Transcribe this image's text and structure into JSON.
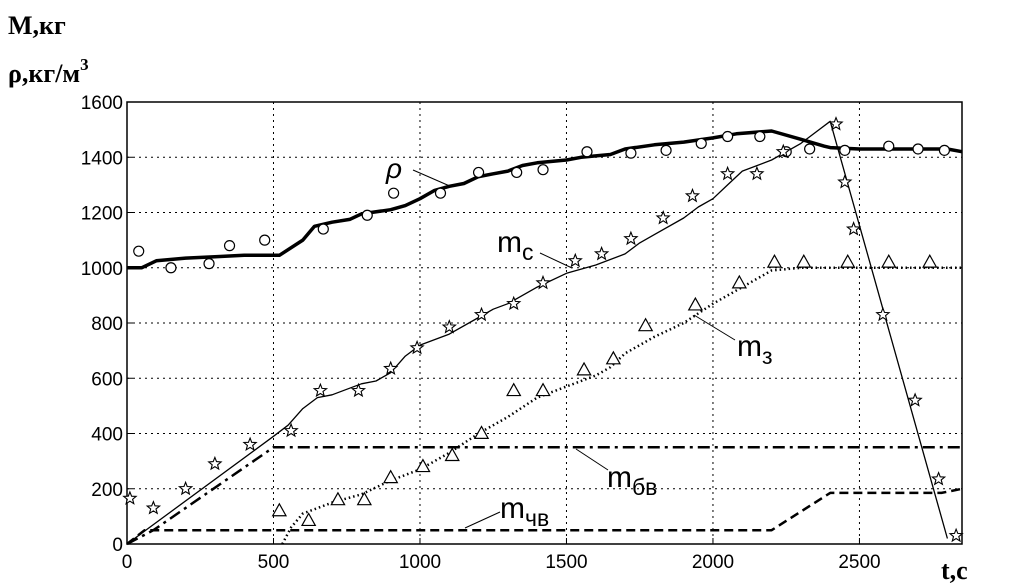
{
  "chart_data": {
    "type": "line",
    "y_label_line1": "M,кг",
    "y_label_line2": "ρ,кг/м",
    "y_label_sup": "3",
    "x_label": "t,c",
    "xlim": [
      0,
      2850
    ],
    "ylim": [
      0,
      1600
    ],
    "x_ticks": [
      0,
      500,
      1000,
      1500,
      2000,
      2500
    ],
    "y_ticks": [
      0,
      200,
      400,
      600,
      800,
      1000,
      1200,
      1400,
      1600
    ],
    "grid": true,
    "series": [
      {
        "name": "ρ",
        "style": "thick-solid",
        "line": [
          [
            0,
            1000
          ],
          [
            50,
            1000
          ],
          [
            100,
            1025
          ],
          [
            200,
            1035
          ],
          [
            300,
            1040
          ],
          [
            400,
            1045
          ],
          [
            520,
            1045
          ],
          [
            600,
            1100
          ],
          [
            640,
            1150
          ],
          [
            700,
            1165
          ],
          [
            760,
            1175
          ],
          [
            800,
            1195
          ],
          [
            900,
            1210
          ],
          [
            950,
            1225
          ],
          [
            1000,
            1250
          ],
          [
            1050,
            1280
          ],
          [
            1100,
            1295
          ],
          [
            1150,
            1305
          ],
          [
            1200,
            1330
          ],
          [
            1250,
            1340
          ],
          [
            1300,
            1350
          ],
          [
            1350,
            1370
          ],
          [
            1400,
            1380
          ],
          [
            1500,
            1390
          ],
          [
            1550,
            1400
          ],
          [
            1650,
            1410
          ],
          [
            1700,
            1430
          ],
          [
            1800,
            1445
          ],
          [
            1900,
            1455
          ],
          [
            2000,
            1470
          ],
          [
            2080,
            1485
          ],
          [
            2200,
            1495
          ],
          [
            2300,
            1465
          ],
          [
            2380,
            1440
          ],
          [
            2400,
            1435
          ],
          [
            2500,
            1430
          ],
          [
            2800,
            1430
          ],
          [
            2850,
            1420
          ]
        ],
        "points": [
          [
            40,
            1060
          ],
          [
            150,
            1000
          ],
          [
            280,
            1015
          ],
          [
            350,
            1080
          ],
          [
            470,
            1100
          ],
          [
            670,
            1140
          ],
          [
            820,
            1190
          ],
          [
            910,
            1270
          ],
          [
            1070,
            1270
          ],
          [
            1200,
            1345
          ],
          [
            1330,
            1345
          ],
          [
            1420,
            1355
          ],
          [
            1570,
            1420
          ],
          [
            1720,
            1415
          ],
          [
            1840,
            1425
          ],
          [
            1960,
            1450
          ],
          [
            2050,
            1475
          ],
          [
            2160,
            1475
          ],
          [
            2250,
            1420
          ],
          [
            2330,
            1430
          ],
          [
            2450,
            1425
          ],
          [
            2600,
            1440
          ],
          [
            2700,
            1430
          ],
          [
            2790,
            1425
          ]
        ],
        "marker": "circle"
      },
      {
        "name": "m",
        "subscript": "c",
        "style": "thin-solid",
        "line": [
          [
            0,
            0
          ],
          [
            500,
            390
          ],
          [
            550,
            430
          ],
          [
            600,
            490
          ],
          [
            650,
            530
          ],
          [
            700,
            540
          ],
          [
            750,
            560
          ],
          [
            800,
            580
          ],
          [
            850,
            590
          ],
          [
            900,
            620
          ],
          [
            950,
            680
          ],
          [
            1000,
            720
          ],
          [
            1100,
            760
          ],
          [
            1200,
            820
          ],
          [
            1250,
            850
          ],
          [
            1300,
            870
          ],
          [
            1400,
            930
          ],
          [
            1500,
            980
          ],
          [
            1600,
            1010
          ],
          [
            1700,
            1050
          ],
          [
            1750,
            1090
          ],
          [
            1800,
            1120
          ],
          [
            1900,
            1180
          ],
          [
            1950,
            1220
          ],
          [
            2000,
            1250
          ],
          [
            2050,
            1300
          ],
          [
            2100,
            1350
          ],
          [
            2200,
            1390
          ],
          [
            2300,
            1450
          ],
          [
            2400,
            1530
          ],
          [
            2800,
            20
          ]
        ],
        "points": [
          [
            10,
            165
          ],
          [
            90,
            130
          ],
          [
            200,
            200
          ],
          [
            300,
            290
          ],
          [
            420,
            360
          ],
          [
            560,
            410
          ],
          [
            660,
            555
          ],
          [
            790,
            555
          ],
          [
            900,
            635
          ],
          [
            990,
            710
          ],
          [
            1100,
            785
          ],
          [
            1210,
            830
          ],
          [
            1320,
            870
          ],
          [
            1420,
            945
          ],
          [
            1530,
            1025
          ],
          [
            1620,
            1050
          ],
          [
            1720,
            1105
          ],
          [
            1830,
            1180
          ],
          [
            1930,
            1260
          ],
          [
            2050,
            1340
          ],
          [
            2150,
            1340
          ],
          [
            2240,
            1420
          ],
          [
            2420,
            1520
          ],
          [
            2450,
            1310
          ],
          [
            2480,
            1140
          ],
          [
            2580,
            830
          ],
          [
            2690,
            520
          ],
          [
            2770,
            235
          ],
          [
            2830,
            30
          ]
        ],
        "marker": "star"
      },
      {
        "name": "m",
        "subscript": "з",
        "style": "dotted",
        "line": [
          [
            530,
            0
          ],
          [
            560,
            60
          ],
          [
            600,
            110
          ],
          [
            700,
            150
          ],
          [
            800,
            180
          ],
          [
            900,
            230
          ],
          [
            1000,
            270
          ],
          [
            1100,
            330
          ],
          [
            1200,
            400
          ],
          [
            1300,
            460
          ],
          [
            1400,
            530
          ],
          [
            1500,
            570
          ],
          [
            1600,
            610
          ],
          [
            1650,
            640
          ],
          [
            1700,
            690
          ],
          [
            1800,
            750
          ],
          [
            1900,
            800
          ],
          [
            2000,
            870
          ],
          [
            2100,
            930
          ],
          [
            2200,
            990
          ],
          [
            2300,
            1000
          ],
          [
            2850,
            1000
          ]
        ],
        "points": [
          [
            520,
            120
          ],
          [
            620,
            85
          ],
          [
            720,
            160
          ],
          [
            810,
            160
          ],
          [
            900,
            240
          ],
          [
            1010,
            280
          ],
          [
            1110,
            320
          ],
          [
            1210,
            400
          ],
          [
            1320,
            555
          ],
          [
            1420,
            555
          ],
          [
            1560,
            630
          ],
          [
            1660,
            670
          ],
          [
            1770,
            790
          ],
          [
            1940,
            865
          ],
          [
            2090,
            945
          ],
          [
            2210,
            1020
          ],
          [
            2310,
            1020
          ],
          [
            2460,
            1020
          ],
          [
            2600,
            1020
          ],
          [
            2740,
            1020
          ]
        ],
        "marker": "triangle"
      },
      {
        "name": "m",
        "subscript": "бв",
        "style": "dash-dot",
        "line": [
          [
            0,
            0
          ],
          [
            90,
            50
          ],
          [
            500,
            350
          ],
          [
            2850,
            350
          ]
        ]
      },
      {
        "name": "m",
        "subscript": "чв",
        "style": "dashed",
        "line": [
          [
            0,
            0
          ],
          [
            60,
            50
          ],
          [
            2200,
            50
          ],
          [
            2400,
            185
          ],
          [
            2780,
            185
          ],
          [
            2850,
            200
          ]
        ]
      }
    ]
  }
}
